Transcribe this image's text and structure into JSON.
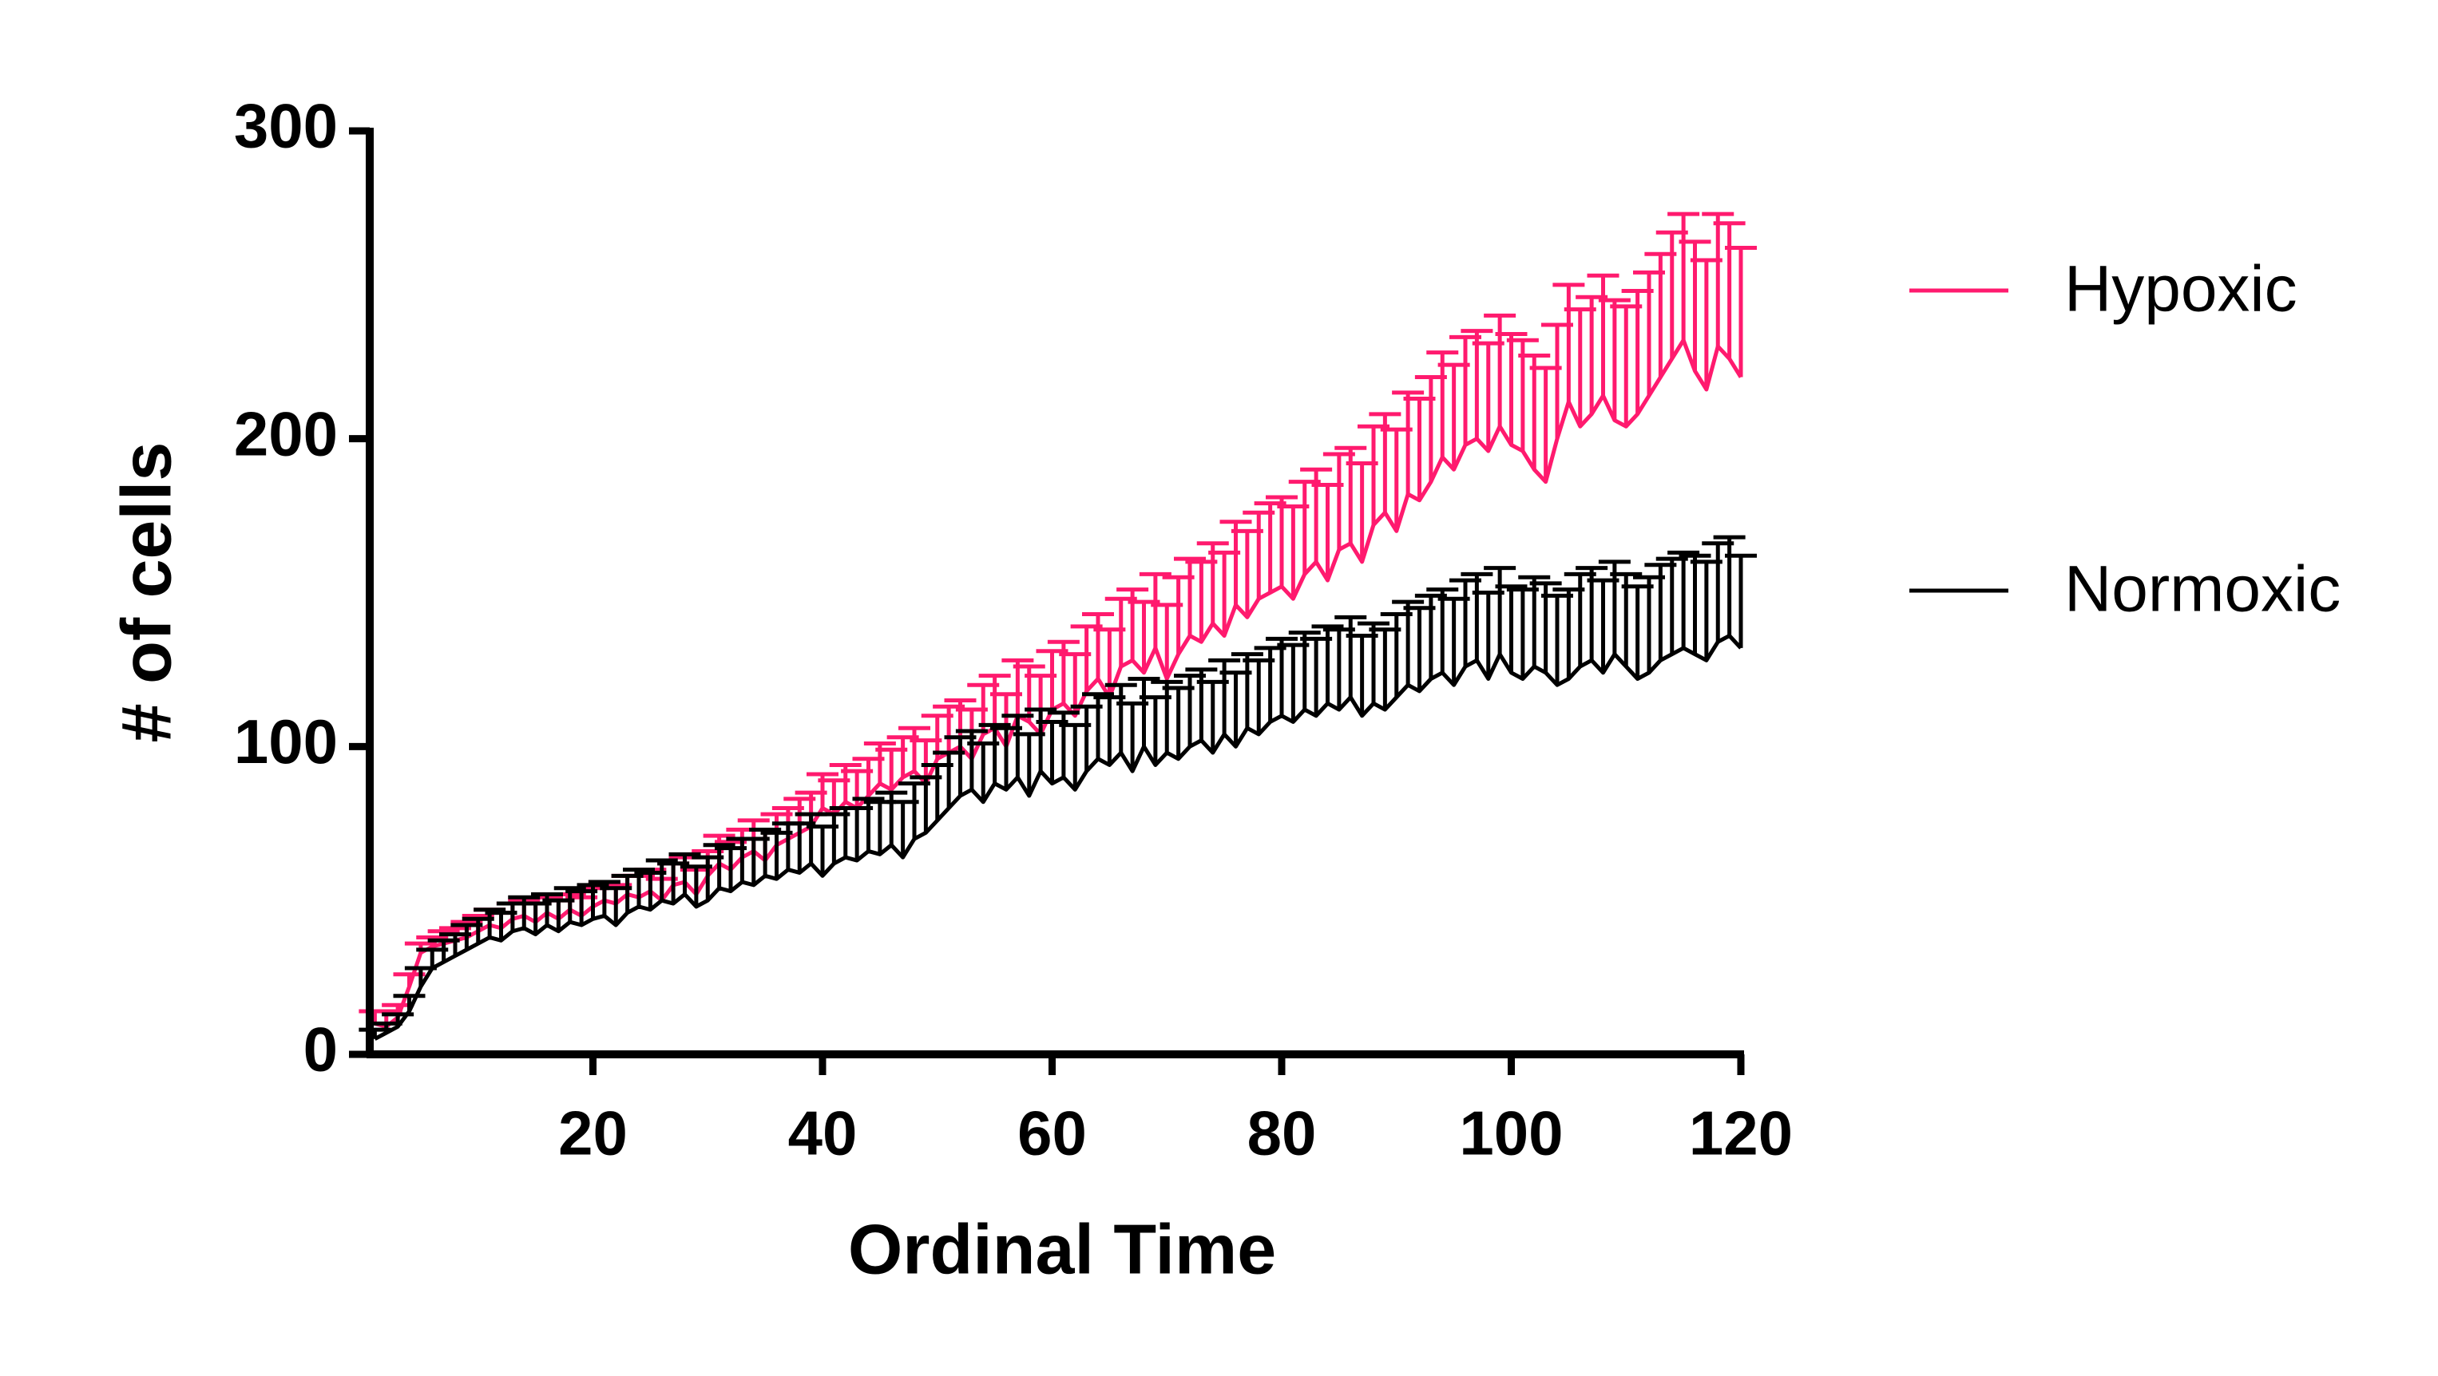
{
  "chart_data": {
    "type": "line",
    "x_label": "Ordinal Time",
    "y_label": "# of cells",
    "x": [
      1,
      2,
      3,
      4,
      5,
      6,
      7,
      8,
      9,
      10,
      11,
      12,
      13,
      14,
      15,
      16,
      17,
      18,
      19,
      20,
      21,
      22,
      23,
      24,
      25,
      26,
      27,
      28,
      29,
      30,
      31,
      32,
      33,
      34,
      35,
      36,
      37,
      38,
      39,
      40,
      41,
      42,
      43,
      44,
      45,
      46,
      47,
      48,
      49,
      50,
      51,
      52,
      53,
      54,
      55,
      56,
      57,
      58,
      59,
      60,
      61,
      62,
      63,
      64,
      65,
      66,
      67,
      68,
      69,
      70,
      71,
      72,
      73,
      74,
      75,
      76,
      77,
      78,
      79,
      80,
      81,
      82,
      83,
      84,
      85,
      86,
      87,
      88,
      89,
      90,
      91,
      92,
      93,
      94,
      95,
      96,
      97,
      98,
      99,
      100,
      101,
      102,
      103,
      104,
      105,
      106,
      107,
      108,
      109,
      110,
      111,
      112,
      113,
      114,
      115,
      116,
      117,
      118,
      119,
      120
    ],
    "series": [
      {
        "name": "Hypoxic",
        "color": "#ff1a6e",
        "values": [
          10,
          9,
          12,
          22,
          33,
          35,
          36,
          37,
          38,
          40,
          42,
          41,
          44,
          45,
          43,
          46,
          44,
          47,
          45,
          48,
          50,
          49,
          52,
          51,
          53,
          50,
          55,
          56,
          52,
          58,
          62,
          60,
          64,
          66,
          63,
          68,
          70,
          72,
          74,
          80,
          78,
          82,
          80,
          84,
          88,
          86,
          90,
          92,
          88,
          96,
          98,
          100,
          96,
          104,
          106,
          100,
          110,
          108,
          104,
          112,
          114,
          110,
          118,
          122,
          116,
          126,
          128,
          124,
          132,
          122,
          130,
          136,
          134,
          140,
          136,
          146,
          142,
          148,
          150,
          152,
          148,
          156,
          160,
          154,
          164,
          166,
          160,
          172,
          176,
          170,
          182,
          180,
          186,
          194,
          190,
          198,
          200,
          196,
          204,
          198,
          196,
          190,
          186,
          200,
          212,
          204,
          208,
          214,
          206,
          204,
          208,
          214,
          220,
          226,
          232,
          222,
          216,
          230,
          226,
          220
        ],
        "errors": [
          4,
          5,
          4,
          4,
          3,
          3,
          4,
          4,
          5,
          5,
          5,
          5,
          5,
          5,
          6,
          5,
          6,
          5,
          6,
          6,
          6,
          6,
          6,
          7,
          7,
          7,
          7,
          8,
          8,
          8,
          9,
          9,
          9,
          10,
          10,
          10,
          10,
          11,
          11,
          11,
          11,
          12,
          12,
          12,
          13,
          13,
          13,
          14,
          14,
          14,
          15,
          15,
          16,
          16,
          17,
          17,
          18,
          18,
          19,
          19,
          20,
          20,
          21,
          21,
          22,
          22,
          23,
          23,
          24,
          24,
          25,
          25,
          26,
          26,
          27,
          27,
          28,
          28,
          29,
          29,
          30,
          30,
          30,
          31,
          31,
          31,
          32,
          32,
          32,
          33,
          33,
          33,
          34,
          34,
          34,
          35,
          35,
          35,
          36,
          36,
          36,
          37,
          37,
          37,
          38,
          38,
          38,
          39,
          39,
          39,
          40,
          40,
          40,
          41,
          41,
          42,
          42,
          43,
          44,
          42
        ]
      },
      {
        "name": "Normoxic",
        "color": "#000000",
        "values": [
          5,
          7,
          9,
          14,
          22,
          28,
          30,
          32,
          34,
          36,
          38,
          37,
          40,
          41,
          39,
          42,
          40,
          43,
          42,
          44,
          45,
          42,
          46,
          48,
          47,
          50,
          49,
          52,
          48,
          50,
          54,
          53,
          56,
          55,
          58,
          57,
          60,
          59,
          62,
          58,
          62,
          64,
          63,
          66,
          65,
          68,
          64,
          70,
          72,
          76,
          80,
          84,
          86,
          82,
          88,
          86,
          90,
          84,
          92,
          88,
          90,
          86,
          92,
          96,
          94,
          98,
          92,
          100,
          94,
          98,
          96,
          100,
          102,
          98,
          104,
          100,
          106,
          104,
          108,
          110,
          108,
          112,
          110,
          114,
          112,
          116,
          110,
          114,
          112,
          116,
          120,
          118,
          122,
          124,
          120,
          126,
          128,
          122,
          130,
          124,
          122,
          126,
          124,
          120,
          122,
          126,
          128,
          124,
          130,
          126,
          122,
          124,
          128,
          130,
          132,
          130,
          128,
          134,
          136,
          132
        ],
        "errors": [
          3,
          3,
          4,
          5,
          6,
          6,
          7,
          7,
          8,
          8,
          9,
          9,
          9,
          10,
          10,
          10,
          10,
          11,
          11,
          11,
          11,
          12,
          12,
          12,
          12,
          13,
          13,
          13,
          13,
          14,
          14,
          14,
          14,
          15,
          15,
          15,
          15,
          16,
          16,
          16,
          16,
          16,
          17,
          17,
          17,
          17,
          18,
          18,
          18,
          18,
          18,
          19,
          19,
          19,
          19,
          20,
          20,
          20,
          20,
          20,
          21,
          21,
          21,
          21,
          22,
          22,
          22,
          22,
          22,
          23,
          23,
          23,
          23,
          23,
          24,
          24,
          24,
          24,
          24,
          25,
          25,
          25,
          25,
          25,
          26,
          26,
          26,
          26,
          26,
          27,
          27,
          27,
          27,
          27,
          28,
          28,
          28,
          28,
          28,
          28,
          29,
          29,
          29,
          29,
          29,
          30,
          30,
          30,
          30,
          30,
          30,
          31,
          31,
          31,
          31,
          32,
          32,
          32,
          32,
          30
        ]
      }
    ],
    "xlim": [
      0,
      120
    ],
    "xticks": [
      20,
      40,
      60,
      80,
      100,
      120
    ],
    "ylim": [
      0,
      300
    ],
    "yticks": [
      0,
      100,
      200,
      300
    ],
    "legend": "right"
  }
}
